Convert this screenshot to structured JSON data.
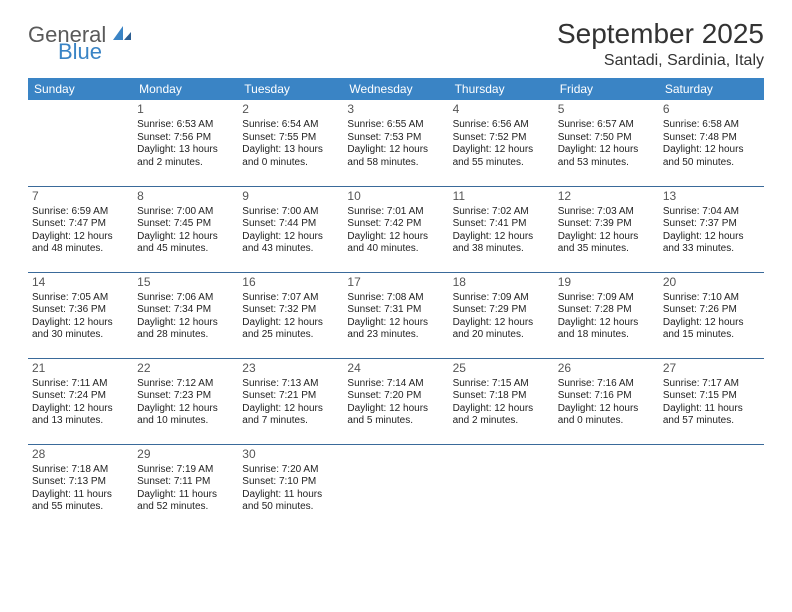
{
  "brand": {
    "general": "General",
    "blue": "Blue"
  },
  "title": "September 2025",
  "location": "Santadi, Sardinia, Italy",
  "colors": {
    "header_bg": "#3a84c5",
    "header_text": "#ffffff",
    "cell_border": "#3a6a9a",
    "text": "#222222",
    "title_text": "#333333",
    "logo_gray": "#5a5a5a",
    "logo_blue": "#3a84c5",
    "background": "#ffffff"
  },
  "day_headers": [
    "Sunday",
    "Monday",
    "Tuesday",
    "Wednesday",
    "Thursday",
    "Friday",
    "Saturday"
  ],
  "weeks": [
    [
      null,
      {
        "n": "1",
        "sr": "Sunrise: 6:53 AM",
        "ss": "Sunset: 7:56 PM",
        "d1": "Daylight: 13 hours",
        "d2": "and 2 minutes."
      },
      {
        "n": "2",
        "sr": "Sunrise: 6:54 AM",
        "ss": "Sunset: 7:55 PM",
        "d1": "Daylight: 13 hours",
        "d2": "and 0 minutes."
      },
      {
        "n": "3",
        "sr": "Sunrise: 6:55 AM",
        "ss": "Sunset: 7:53 PM",
        "d1": "Daylight: 12 hours",
        "d2": "and 58 minutes."
      },
      {
        "n": "4",
        "sr": "Sunrise: 6:56 AM",
        "ss": "Sunset: 7:52 PM",
        "d1": "Daylight: 12 hours",
        "d2": "and 55 minutes."
      },
      {
        "n": "5",
        "sr": "Sunrise: 6:57 AM",
        "ss": "Sunset: 7:50 PM",
        "d1": "Daylight: 12 hours",
        "d2": "and 53 minutes."
      },
      {
        "n": "6",
        "sr": "Sunrise: 6:58 AM",
        "ss": "Sunset: 7:48 PM",
        "d1": "Daylight: 12 hours",
        "d2": "and 50 minutes."
      }
    ],
    [
      {
        "n": "7",
        "sr": "Sunrise: 6:59 AM",
        "ss": "Sunset: 7:47 PM",
        "d1": "Daylight: 12 hours",
        "d2": "and 48 minutes."
      },
      {
        "n": "8",
        "sr": "Sunrise: 7:00 AM",
        "ss": "Sunset: 7:45 PM",
        "d1": "Daylight: 12 hours",
        "d2": "and 45 minutes."
      },
      {
        "n": "9",
        "sr": "Sunrise: 7:00 AM",
        "ss": "Sunset: 7:44 PM",
        "d1": "Daylight: 12 hours",
        "d2": "and 43 minutes."
      },
      {
        "n": "10",
        "sr": "Sunrise: 7:01 AM",
        "ss": "Sunset: 7:42 PM",
        "d1": "Daylight: 12 hours",
        "d2": "and 40 minutes."
      },
      {
        "n": "11",
        "sr": "Sunrise: 7:02 AM",
        "ss": "Sunset: 7:41 PM",
        "d1": "Daylight: 12 hours",
        "d2": "and 38 minutes."
      },
      {
        "n": "12",
        "sr": "Sunrise: 7:03 AM",
        "ss": "Sunset: 7:39 PM",
        "d1": "Daylight: 12 hours",
        "d2": "and 35 minutes."
      },
      {
        "n": "13",
        "sr": "Sunrise: 7:04 AM",
        "ss": "Sunset: 7:37 PM",
        "d1": "Daylight: 12 hours",
        "d2": "and 33 minutes."
      }
    ],
    [
      {
        "n": "14",
        "sr": "Sunrise: 7:05 AM",
        "ss": "Sunset: 7:36 PM",
        "d1": "Daylight: 12 hours",
        "d2": "and 30 minutes."
      },
      {
        "n": "15",
        "sr": "Sunrise: 7:06 AM",
        "ss": "Sunset: 7:34 PM",
        "d1": "Daylight: 12 hours",
        "d2": "and 28 minutes."
      },
      {
        "n": "16",
        "sr": "Sunrise: 7:07 AM",
        "ss": "Sunset: 7:32 PM",
        "d1": "Daylight: 12 hours",
        "d2": "and 25 minutes."
      },
      {
        "n": "17",
        "sr": "Sunrise: 7:08 AM",
        "ss": "Sunset: 7:31 PM",
        "d1": "Daylight: 12 hours",
        "d2": "and 23 minutes."
      },
      {
        "n": "18",
        "sr": "Sunrise: 7:09 AM",
        "ss": "Sunset: 7:29 PM",
        "d1": "Daylight: 12 hours",
        "d2": "and 20 minutes."
      },
      {
        "n": "19",
        "sr": "Sunrise: 7:09 AM",
        "ss": "Sunset: 7:28 PM",
        "d1": "Daylight: 12 hours",
        "d2": "and 18 minutes."
      },
      {
        "n": "20",
        "sr": "Sunrise: 7:10 AM",
        "ss": "Sunset: 7:26 PM",
        "d1": "Daylight: 12 hours",
        "d2": "and 15 minutes."
      }
    ],
    [
      {
        "n": "21",
        "sr": "Sunrise: 7:11 AM",
        "ss": "Sunset: 7:24 PM",
        "d1": "Daylight: 12 hours",
        "d2": "and 13 minutes."
      },
      {
        "n": "22",
        "sr": "Sunrise: 7:12 AM",
        "ss": "Sunset: 7:23 PM",
        "d1": "Daylight: 12 hours",
        "d2": "and 10 minutes."
      },
      {
        "n": "23",
        "sr": "Sunrise: 7:13 AM",
        "ss": "Sunset: 7:21 PM",
        "d1": "Daylight: 12 hours",
        "d2": "and 7 minutes."
      },
      {
        "n": "24",
        "sr": "Sunrise: 7:14 AM",
        "ss": "Sunset: 7:20 PM",
        "d1": "Daylight: 12 hours",
        "d2": "and 5 minutes."
      },
      {
        "n": "25",
        "sr": "Sunrise: 7:15 AM",
        "ss": "Sunset: 7:18 PM",
        "d1": "Daylight: 12 hours",
        "d2": "and 2 minutes."
      },
      {
        "n": "26",
        "sr": "Sunrise: 7:16 AM",
        "ss": "Sunset: 7:16 PM",
        "d1": "Daylight: 12 hours",
        "d2": "and 0 minutes."
      },
      {
        "n": "27",
        "sr": "Sunrise: 7:17 AM",
        "ss": "Sunset: 7:15 PM",
        "d1": "Daylight: 11 hours",
        "d2": "and 57 minutes."
      }
    ],
    [
      {
        "n": "28",
        "sr": "Sunrise: 7:18 AM",
        "ss": "Sunset: 7:13 PM",
        "d1": "Daylight: 11 hours",
        "d2": "and 55 minutes."
      },
      {
        "n": "29",
        "sr": "Sunrise: 7:19 AM",
        "ss": "Sunset: 7:11 PM",
        "d1": "Daylight: 11 hours",
        "d2": "and 52 minutes."
      },
      {
        "n": "30",
        "sr": "Sunrise: 7:20 AM",
        "ss": "Sunset: 7:10 PM",
        "d1": "Daylight: 11 hours",
        "d2": "and 50 minutes."
      },
      null,
      null,
      null,
      null
    ]
  ]
}
